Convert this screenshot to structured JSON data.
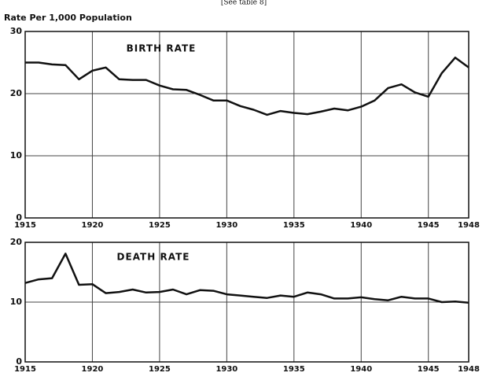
{
  "note": "[See table 8]",
  "chart_data": [
    {
      "type": "line",
      "title": "BIRTH RATE",
      "y_label": "Rate Per 1,000 Population",
      "color": "#111111",
      "grid": true,
      "x": [
        1915,
        1916,
        1917,
        1918,
        1919,
        1920,
        1921,
        1922,
        1923,
        1924,
        1925,
        1926,
        1927,
        1928,
        1929,
        1930,
        1931,
        1932,
        1933,
        1934,
        1935,
        1936,
        1937,
        1938,
        1939,
        1940,
        1941,
        1942,
        1943,
        1944,
        1945,
        1946,
        1947,
        1948
      ],
      "values": [
        25.0,
        25.0,
        24.7,
        24.6,
        22.3,
        23.7,
        24.2,
        22.3,
        22.2,
        22.2,
        21.3,
        20.7,
        20.6,
        19.8,
        18.9,
        18.9,
        18.0,
        17.4,
        16.6,
        17.2,
        16.9,
        16.7,
        17.1,
        17.6,
        17.3,
        17.9,
        18.9,
        20.9,
        21.5,
        20.2,
        19.5,
        23.3,
        25.8,
        24.2
      ],
      "xlim": [
        1915,
        1948
      ],
      "xticks": [
        1915,
        1920,
        1925,
        1930,
        1935,
        1940,
        1945,
        1948
      ],
      "ylim": [
        0,
        30
      ],
      "yticks": [
        0,
        10,
        20,
        30
      ]
    },
    {
      "type": "line",
      "title": "DEATH RATE",
      "color": "#111111",
      "grid": true,
      "x": [
        1915,
        1916,
        1917,
        1918,
        1919,
        1920,
        1921,
        1922,
        1923,
        1924,
        1925,
        1926,
        1927,
        1928,
        1929,
        1930,
        1931,
        1932,
        1933,
        1934,
        1935,
        1936,
        1937,
        1938,
        1939,
        1940,
        1941,
        1942,
        1943,
        1944,
        1945,
        1946,
        1947,
        1948
      ],
      "values": [
        13.2,
        13.8,
        14.0,
        18.1,
        12.9,
        13.0,
        11.5,
        11.7,
        12.1,
        11.6,
        11.7,
        12.1,
        11.3,
        12.0,
        11.9,
        11.3,
        11.1,
        10.9,
        10.7,
        11.1,
        10.9,
        11.6,
        11.3,
        10.6,
        10.6,
        10.8,
        10.5,
        10.3,
        10.9,
        10.6,
        10.6,
        10.0,
        10.1,
        9.9
      ],
      "xlim": [
        1915,
        1948
      ],
      "xticks": [
        1915,
        1920,
        1925,
        1930,
        1935,
        1940,
        1945,
        1948
      ],
      "ylim": [
        0,
        20
      ],
      "yticks": [
        0,
        10,
        20
      ]
    }
  ]
}
